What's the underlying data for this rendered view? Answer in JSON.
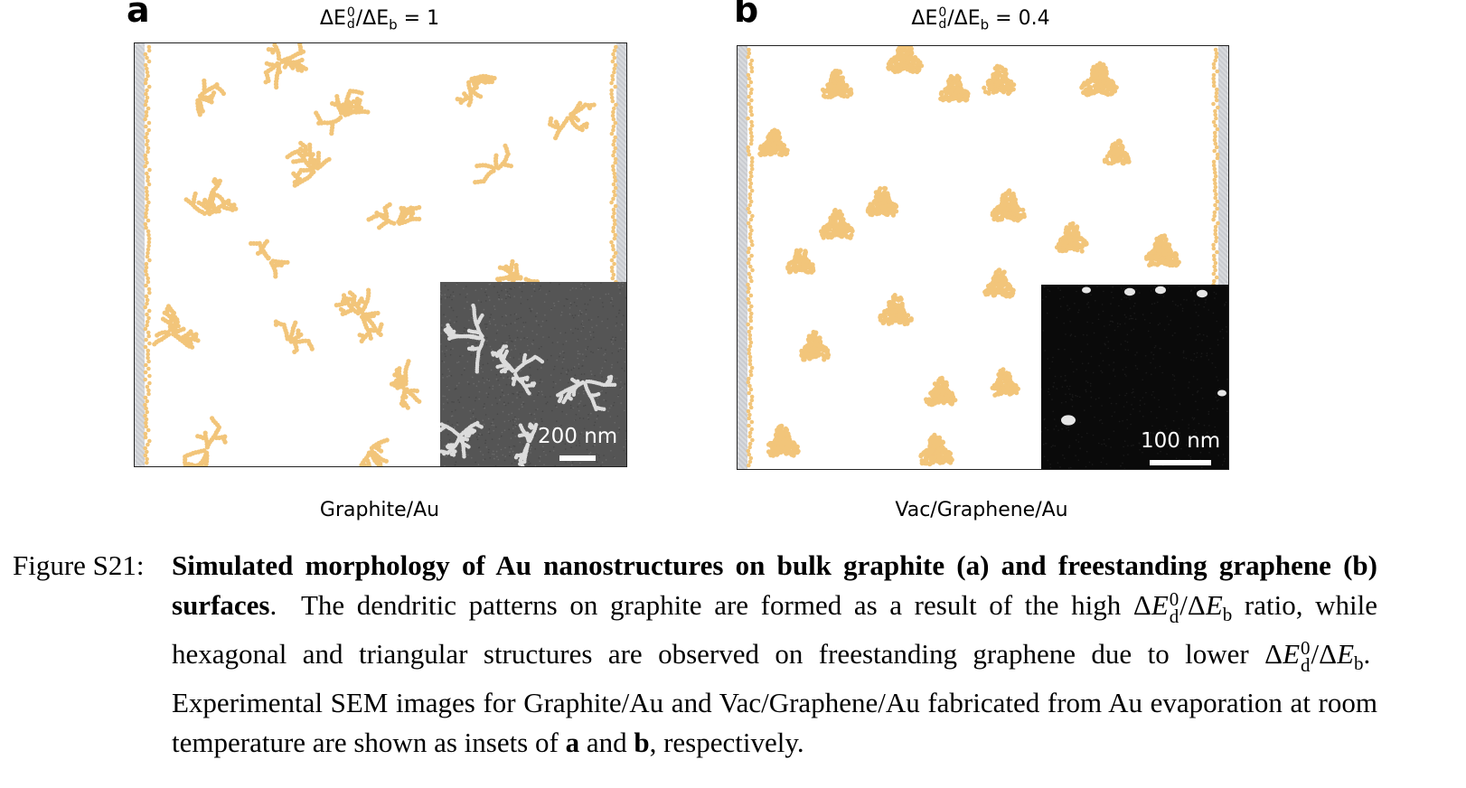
{
  "figure": {
    "panels": [
      {
        "letter": "a",
        "title_prefix": "ΔE",
        "title_sup": "0",
        "title_sub": "d",
        "title_mid": "/ΔE",
        "title_sub2": "b",
        "title_suffix": " = 1",
        "label": "Graphite/Au",
        "inset_scale": "200 nm",
        "morphology": "dendritic",
        "inset_background": "#555555"
      },
      {
        "letter": "b",
        "title_prefix": "ΔE",
        "title_sup": "0",
        "title_sub": "d",
        "title_mid": "/ΔE",
        "title_sub2": "b",
        "title_suffix": " = 0.4",
        "label": "Vac/Graphene/Au",
        "inset_scale": "100 nm",
        "morphology": "compact",
        "inset_background": "#0a0a0a"
      }
    ],
    "colors": {
      "au_particles": "#f2c57a",
      "substrate_edge": "#cdcfd3"
    }
  },
  "caption": {
    "figure_label": "Figure S21:",
    "title": "Simulated morphology of Au nanostructures on bulk graphite (a) and freestanding graphene (b) surfaces",
    "s1_part1": "The dendritic patterns on graphite are formed as a result of the high ",
    "s1_part2": " ratio, while hexagonal and triangular structures are observed on freestanding graphene due to lower ",
    "s2_part1": "Experimental SEM images for Graphite/Au and Vac/Graphene/Au fabricated from Au evaporation at room temperature are shown as insets of ",
    "a": "a",
    "and": " and ",
    "b": "b",
    "s2_end": ", respectively."
  }
}
